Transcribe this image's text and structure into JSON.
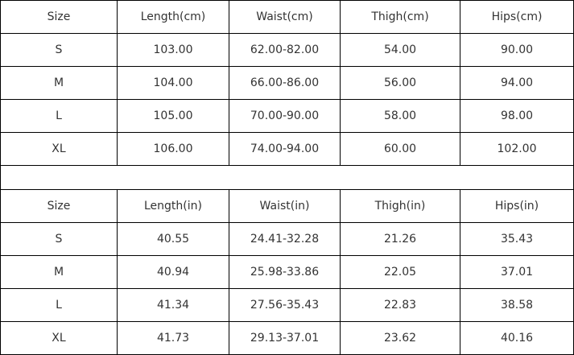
{
  "tables": [
    {
      "headers": [
        "Size",
        "Length(cm)",
        "Waist(cm)",
        "Thigh(cm)",
        "Hips(cm)"
      ],
      "rows": [
        [
          "S",
          "103.00",
          "62.00-82.00",
          "54.00",
          "90.00"
        ],
        [
          "M",
          "104.00",
          "66.00-86.00",
          "56.00",
          "94.00"
        ],
        [
          "L",
          "105.00",
          "70.00-90.00",
          "58.00",
          "98.00"
        ],
        [
          "XL",
          "106.00",
          "74.00-94.00",
          "60.00",
          "102.00"
        ]
      ]
    },
    {
      "headers": [
        "Size",
        "Length(in)",
        "Waist(in)",
        "Thigh(in)",
        "Hips(in)"
      ],
      "rows": [
        [
          "S",
          "40.55",
          "24.41-32.28",
          "21.26",
          "35.43"
        ],
        [
          "M",
          "40.94",
          "25.98-33.86",
          "22.05",
          "37.01"
        ],
        [
          "L",
          "41.34",
          "27.56-35.43",
          "22.83",
          "38.58"
        ],
        [
          "XL",
          "41.73",
          "29.13-37.01",
          "23.62",
          "40.16"
        ]
      ]
    }
  ]
}
